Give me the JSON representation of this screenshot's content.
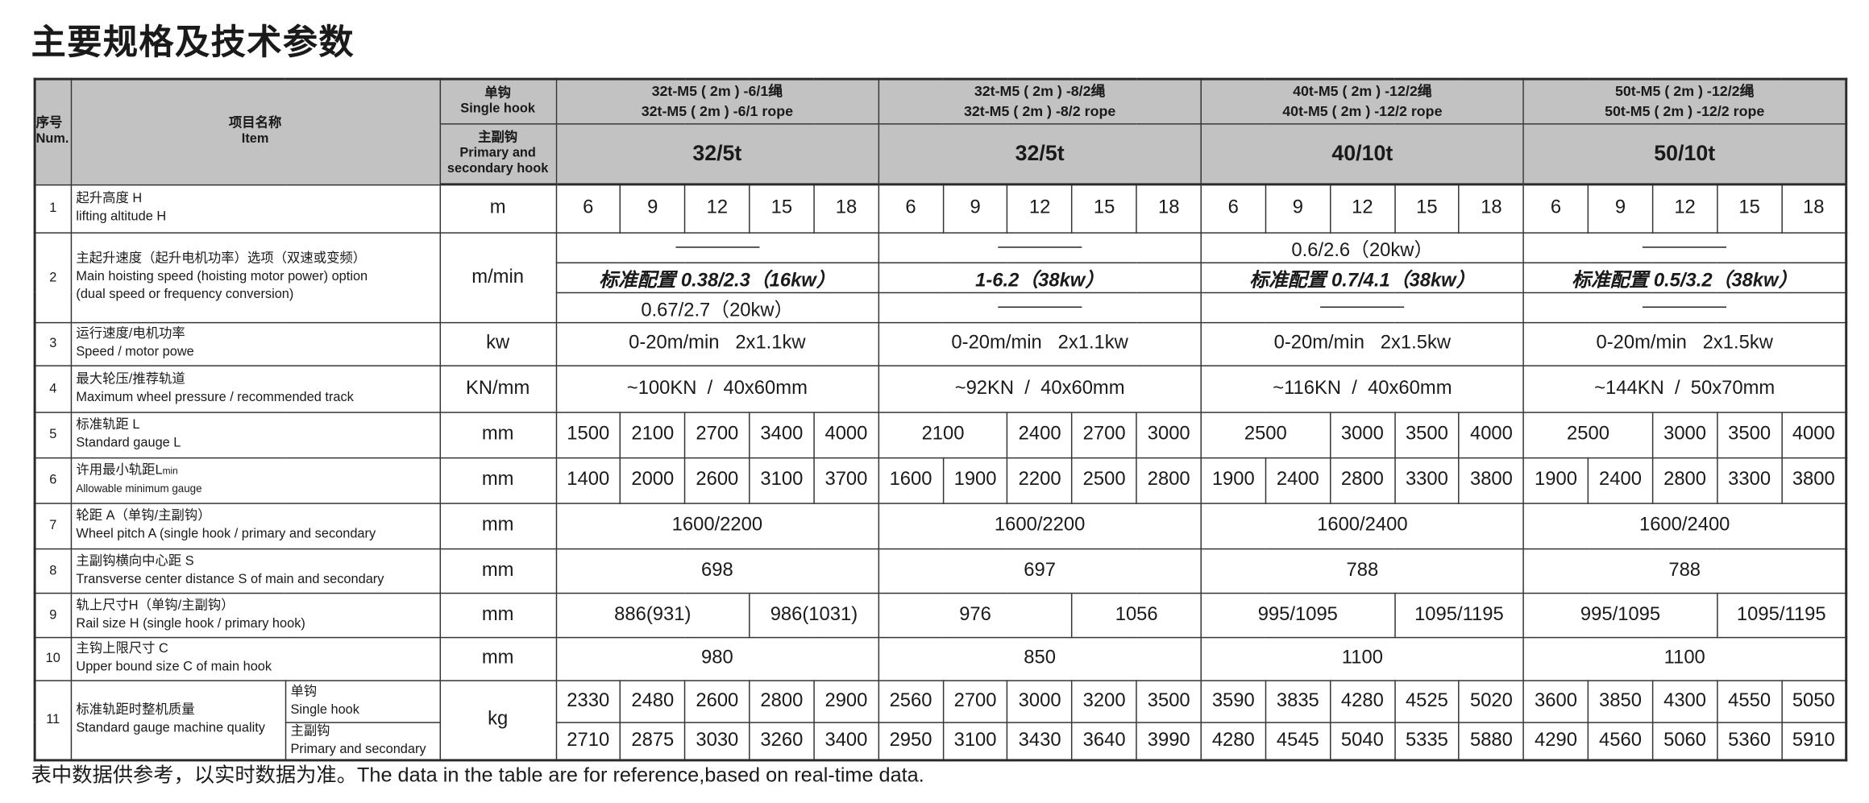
{
  "title": "主要规格及技术参数",
  "header": {
    "num_cn": "序号",
    "num_en": "Num.",
    "item_cn": "项目名称",
    "item_en": "Item",
    "single_cn": "单钩",
    "single_en": "Single hook",
    "primary_cn": "主副钩",
    "primary_en": "Primary and secondary hook",
    "groups": [
      {
        "model_cn": "32t-M5 ( 2m ) -6/1绳",
        "model_en": "32t-M5 ( 2m ) -6/1 rope",
        "capacity": "32/5t"
      },
      {
        "model_cn": "32t-M5 ( 2m ) -8/2绳",
        "model_en": "32t-M5 ( 2m ) -8/2 rope",
        "capacity": "32/5t"
      },
      {
        "model_cn": "40t-M5 ( 2m ) -12/2绳",
        "model_en": "40t-M5 ( 2m ) -12/2 rope",
        "capacity": "40/10t"
      },
      {
        "model_cn": "50t-M5 ( 2m ) -12/2绳",
        "model_en": "50t-M5 ( 2m ) -12/2 rope",
        "capacity": "50/10t"
      }
    ]
  },
  "rows": [
    {
      "num": "1",
      "cn": "起升高度 H",
      "en": "lifting altitude H",
      "unit": "m",
      "groups": [
        [
          "6",
          "9",
          "12",
          "15",
          "18"
        ],
        [
          "6",
          "9",
          "12",
          "15",
          "18"
        ],
        [
          "6",
          "9",
          "12",
          "15",
          "18"
        ],
        [
          "6",
          "9",
          "12",
          "15",
          "18"
        ]
      ]
    },
    {
      "num": "2",
      "cn": "主起升速度（起升电机功率）选项（双速或变频）",
      "en": "Main hoisting speed (hoisting motor power) option",
      "en2": "(dual speed or frequency conversion)",
      "unit": "m/min",
      "options": [
        [
          "——",
          "标准配置 0.38/2.3（16kw）",
          "0.67/2.7（20kw）"
        ],
        [
          "——",
          "1-6.2（38kw）",
          "——"
        ],
        [
          "0.6/2.6（20kw）",
          "标准配置 0.7/4.1（38kw）",
          "——"
        ],
        [
          "——",
          "标准配置 0.5/3.2（38kw）",
          "——"
        ]
      ]
    },
    {
      "num": "3",
      "cn": "运行速度/电机功率",
      "en": "Speed / motor powe",
      "unit": "kw",
      "groups": [
        [
          {
            "v": "0-20m/min   2x1.1kw",
            "span": 5
          }
        ],
        [
          {
            "v": "0-20m/min   2x1.1kw",
            "span": 5
          }
        ],
        [
          {
            "v": "0-20m/min   2x1.5kw",
            "span": 5
          }
        ],
        [
          {
            "v": "0-20m/min   2x1.5kw",
            "span": 5
          }
        ]
      ]
    },
    {
      "num": "4",
      "cn": "最大轮压/推荐轨道",
      "en": "Maximum wheel pressure / recommended track",
      "unit": "KN/mm",
      "groups": [
        [
          {
            "v": "~100KN  /  40x60mm",
            "span": 5
          }
        ],
        [
          {
            "v": "~92KN  /  40x60mm",
            "span": 5
          }
        ],
        [
          {
            "v": "~116KN  /  40x60mm",
            "span": 5
          }
        ],
        [
          {
            "v": "~144KN  /  50x70mm",
            "span": 5
          }
        ]
      ]
    },
    {
      "num": "5",
      "cn": "标准轨距 L",
      "en": "Standard gauge L",
      "unit": "mm",
      "groups": [
        [
          "1500",
          "2100",
          "2700",
          "3400",
          "4000"
        ],
        [
          {
            "v": "2100",
            "span": 2
          },
          "2400",
          "2700",
          "3000"
        ],
        [
          {
            "v": "2500",
            "span": 2
          },
          "3000",
          "3500",
          "4000"
        ],
        [
          {
            "v": "2500",
            "span": 2
          },
          "3000",
          "3500",
          "4000"
        ]
      ]
    },
    {
      "num": "6",
      "cn": "许用最小轨距L",
      "cn_sub": "min",
      "en": "Allowable minimum gauge",
      "unit": "mm",
      "groups": [
        [
          "1400",
          "2000",
          "2600",
          "3100",
          "3700"
        ],
        [
          "1600",
          "1900",
          "2200",
          "2500",
          "2800"
        ],
        [
          "1900",
          "2400",
          "2800",
          "3300",
          "3800"
        ],
        [
          "1900",
          "2400",
          "2800",
          "3300",
          "3800"
        ]
      ]
    },
    {
      "num": "7",
      "cn": "轮距 A（单钩/主副钩）",
      "en": "Wheel pitch A (single hook / primary and secondary",
      "unit": "mm",
      "groups": [
        [
          {
            "v": "1600/2200",
            "span": 5
          }
        ],
        [
          {
            "v": "1600/2200",
            "span": 5
          }
        ],
        [
          {
            "v": "1600/2400",
            "span": 5
          }
        ],
        [
          {
            "v": "1600/2400",
            "span": 5
          }
        ]
      ]
    },
    {
      "num": "8",
      "cn": "主副钩横向中心距 S",
      "en": "Transverse center distance S of main and secondary",
      "unit": "mm",
      "groups": [
        [
          {
            "v": "698",
            "span": 5
          }
        ],
        [
          {
            "v": "697",
            "span": 5
          }
        ],
        [
          {
            "v": "788",
            "span": 5
          }
        ],
        [
          {
            "v": "788",
            "span": 5
          }
        ]
      ]
    },
    {
      "num": "9",
      "cn": "轨上尺寸H（单钩/主副钩）",
      "en": "Rail size H (single hook / primary hook)",
      "unit": "mm",
      "groups": [
        [
          {
            "v": "886(931)",
            "span": 3
          },
          {
            "v": "986(1031)",
            "span": 2
          }
        ],
        [
          {
            "v": "976",
            "span": 3
          },
          {
            "v": "1056",
            "span": 2
          }
        ],
        [
          {
            "v": "995/1095",
            "span": 3
          },
          {
            "v": "1095/1195",
            "span": 2
          }
        ],
        [
          {
            "v": "995/1095",
            "span": 3
          },
          {
            "v": "1095/1195",
            "span": 2
          }
        ]
      ]
    },
    {
      "num": "10",
      "cn": "主钩上限尺寸 C",
      "en": "Upper bound size C of main hook",
      "unit": "mm",
      "groups": [
        [
          {
            "v": "980",
            "span": 5
          }
        ],
        [
          {
            "v": "850",
            "span": 5
          }
        ],
        [
          {
            "v": "1100",
            "span": 5
          }
        ],
        [
          {
            "v": "1100",
            "span": 5
          }
        ]
      ]
    }
  ],
  "mass": {
    "num": "11",
    "cn": "标准轨距时整机质量",
    "en": "Standard gauge machine quality",
    "unit": "kg",
    "sub": [
      {
        "cn": "单钩",
        "en": "Single hook",
        "values": [
          "2330",
          "2480",
          "2600",
          "2800",
          "2900",
          "2560",
          "2700",
          "3000",
          "3200",
          "3500",
          "3590",
          "3835",
          "4280",
          "4525",
          "5020",
          "3600",
          "3850",
          "4300",
          "4550",
          "5050"
        ]
      },
      {
        "cn": "主副钩",
        "en": "Primary and secondary",
        "values": [
          "2710",
          "2875",
          "3030",
          "3260",
          "3400",
          "2950",
          "3100",
          "3430",
          "3640",
          "3990",
          "4280",
          "4545",
          "5040",
          "5335",
          "5880",
          "4290",
          "4560",
          "5060",
          "5360",
          "5910"
        ]
      }
    ]
  },
  "footer": "表中数据供参考，以实时数据为准。The data in the table are for reference,based on real-time data.",
  "colors": {
    "header_bg": "#c2c2c2",
    "border": "#2a2a2a",
    "text": "#1a1a1a"
  }
}
